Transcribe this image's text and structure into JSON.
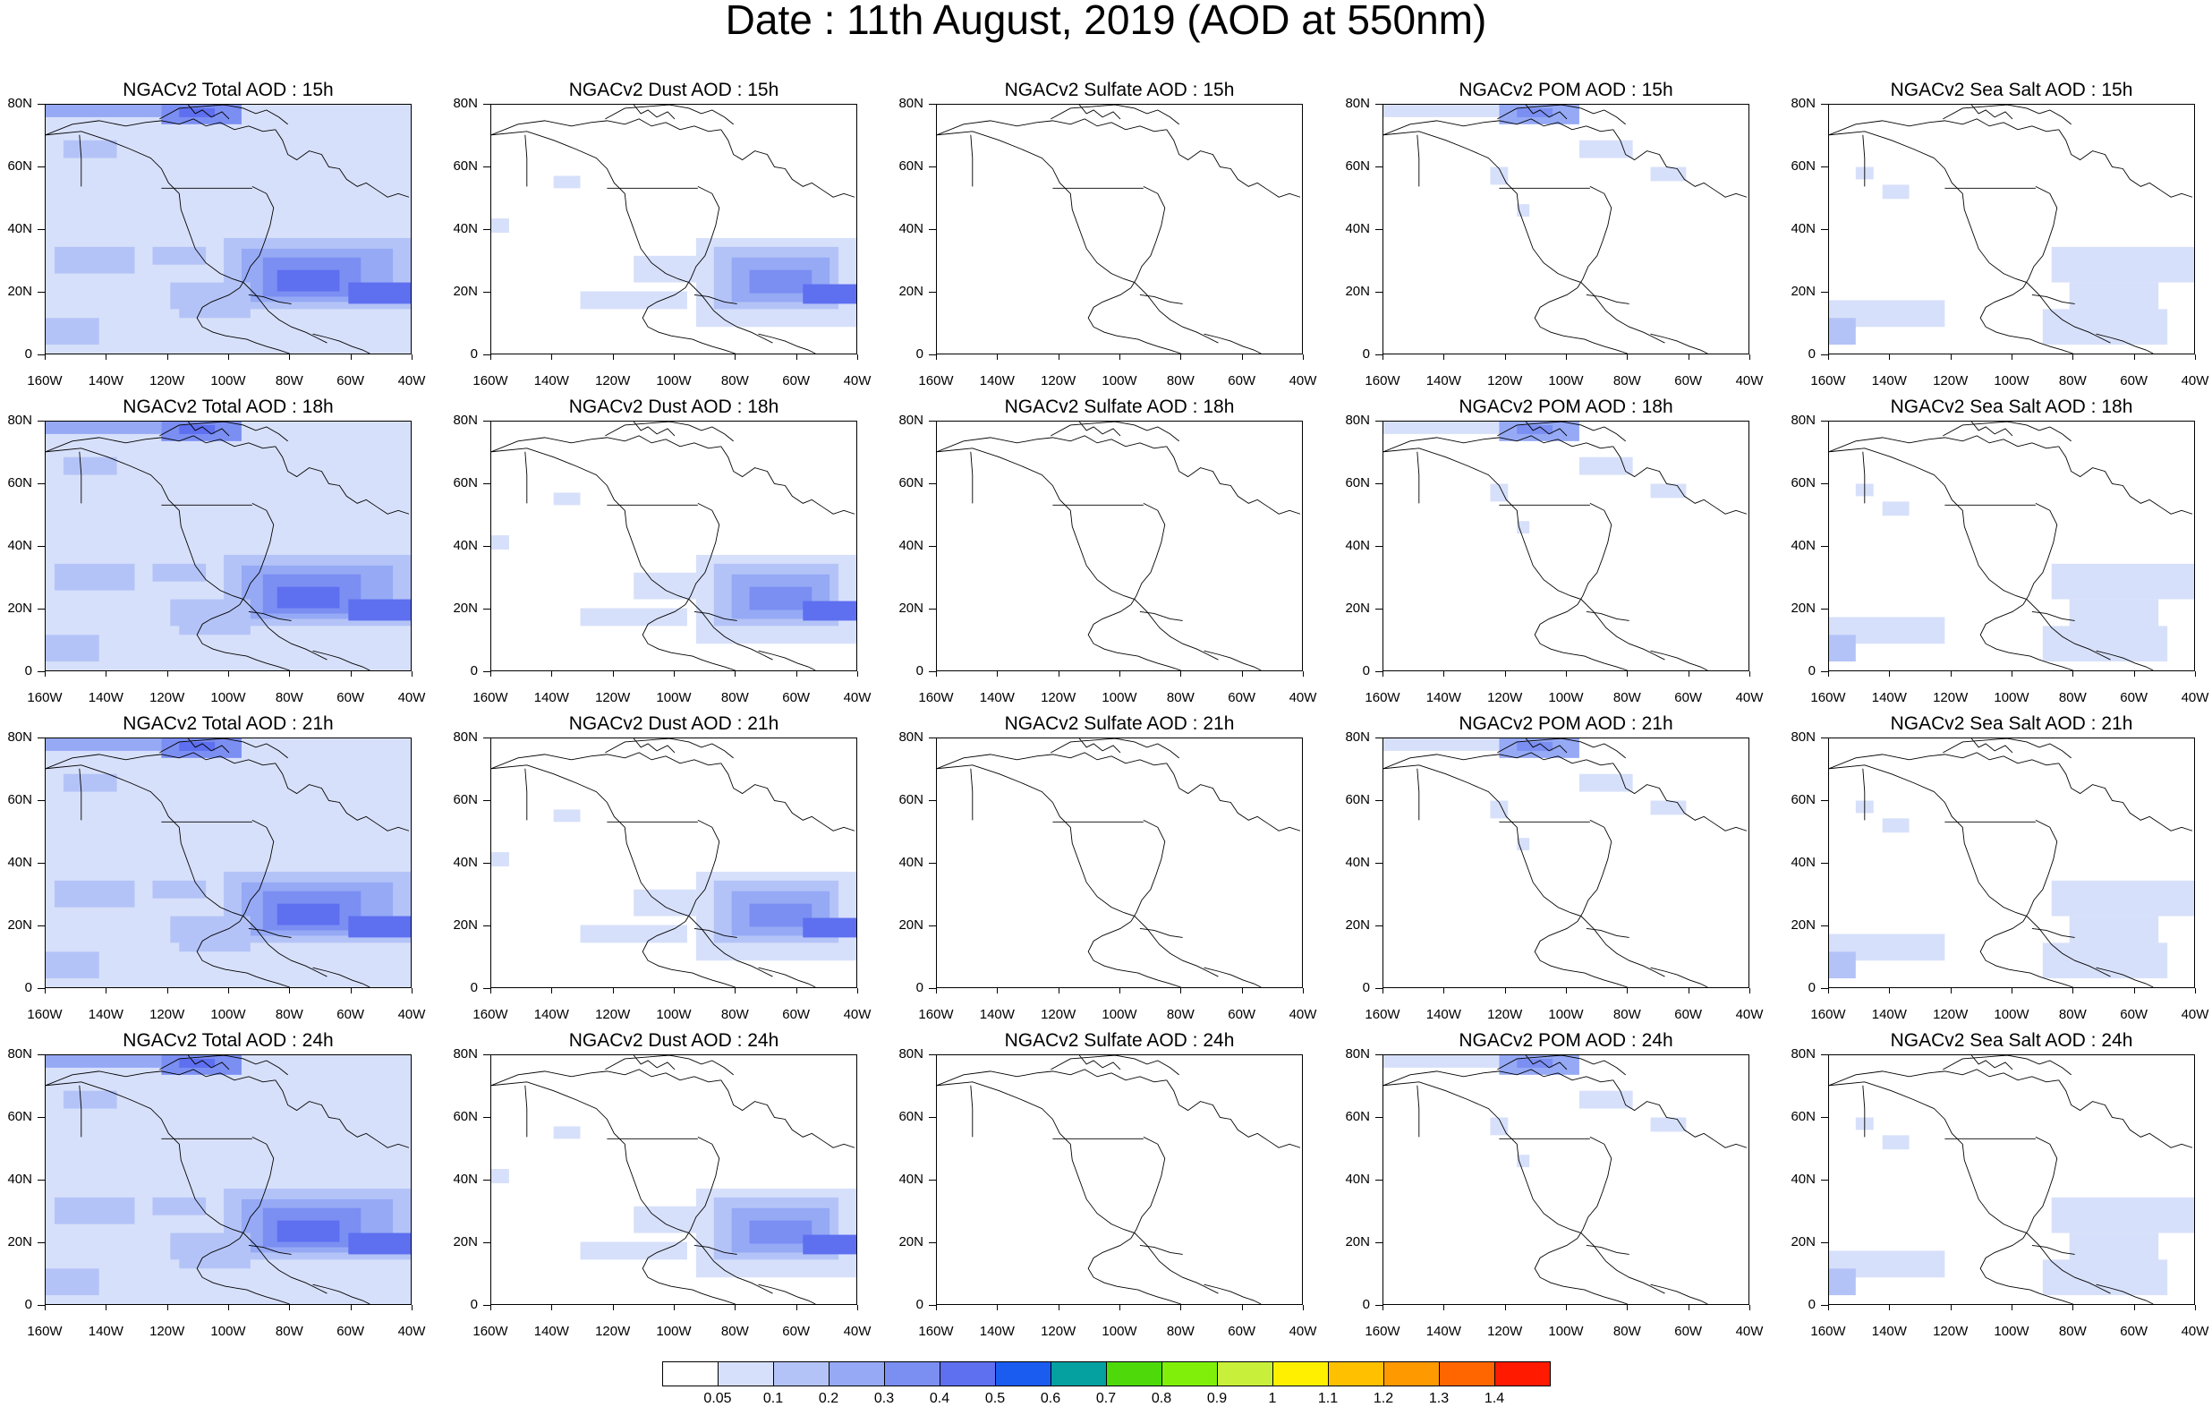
{
  "title": "Date : 11th August, 2019 (AOD at 550nm)",
  "panels": [
    {
      "row": 0,
      "col": 0,
      "title": "NGACv2 Total AOD : 15h",
      "kind": "total"
    },
    {
      "row": 0,
      "col": 1,
      "title": "NGACv2 Dust AOD : 15h",
      "kind": "dust"
    },
    {
      "row": 0,
      "col": 2,
      "title": "NGACv2 Sulfate AOD : 15h",
      "kind": "sulfate"
    },
    {
      "row": 0,
      "col": 3,
      "title": "NGACv2 POM AOD : 15h",
      "kind": "pom"
    },
    {
      "row": 0,
      "col": 4,
      "title": "NGACv2 Sea Salt AOD : 15h",
      "kind": "seasalt"
    },
    {
      "row": 1,
      "col": 0,
      "title": "NGACv2 Total AOD : 18h",
      "kind": "total"
    },
    {
      "row": 1,
      "col": 1,
      "title": "NGACv2 Dust AOD : 18h",
      "kind": "dust"
    },
    {
      "row": 1,
      "col": 2,
      "title": "NGACv2 Sulfate AOD : 18h",
      "kind": "sulfate"
    },
    {
      "row": 1,
      "col": 3,
      "title": "NGACv2 POM AOD : 18h",
      "kind": "pom"
    },
    {
      "row": 1,
      "col": 4,
      "title": "NGACv2 Sea Salt AOD : 18h",
      "kind": "seasalt"
    },
    {
      "row": 2,
      "col": 0,
      "title": "NGACv2 Total AOD : 21h",
      "kind": "total"
    },
    {
      "row": 2,
      "col": 1,
      "title": "NGACv2 Dust AOD : 21h",
      "kind": "dust"
    },
    {
      "row": 2,
      "col": 2,
      "title": "NGACv2 Sulfate AOD : 21h",
      "kind": "sulfate"
    },
    {
      "row": 2,
      "col": 3,
      "title": "NGACv2 POM AOD : 21h",
      "kind": "pom"
    },
    {
      "row": 2,
      "col": 4,
      "title": "NGACv2 Sea Salt AOD : 21h",
      "kind": "seasalt"
    },
    {
      "row": 3,
      "col": 0,
      "title": "NGACv2 Total AOD : 24h",
      "kind": "total"
    },
    {
      "row": 3,
      "col": 1,
      "title": "NGACv2 Dust AOD : 24h",
      "kind": "dust"
    },
    {
      "row": 3,
      "col": 2,
      "title": "NGACv2 Sulfate AOD : 24h",
      "kind": "sulfate"
    },
    {
      "row": 3,
      "col": 3,
      "title": "NGACv2 POM AOD : 24h",
      "kind": "pom"
    },
    {
      "row": 3,
      "col": 4,
      "title": "NGACv2 Sea Salt  AOD : 24h",
      "kind": "seasalt"
    }
  ],
  "axes": {
    "x_ticks": [
      "160W",
      "140W",
      "120W",
      "100W",
      "80W",
      "60W",
      "40W"
    ],
    "y_ticks": [
      "80N",
      "60N",
      "40N",
      "20N",
      "0"
    ],
    "x_range_deg": [
      -160,
      -40
    ],
    "y_range_deg": [
      0,
      80
    ]
  },
  "colorbar": {
    "labels": [
      "0.05",
      "0.1",
      "0.2",
      "0.3",
      "0.4",
      "0.5",
      "0.6",
      "0.7",
      "0.8",
      "0.9",
      "1",
      "1.1",
      "1.2",
      "1.3",
      "1.4"
    ],
    "colors": [
      "#ffffff",
      "#d7e0fa",
      "#b4c3f7",
      "#95a9f5",
      "#7b8ef2",
      "#5e6ff0",
      "#1a5cf0",
      "#05a0a0",
      "#4dd90a",
      "#80f00a",
      "#c8f03a",
      "#fff000",
      "#ffc000",
      "#ff9900",
      "#ff6600",
      "#ff1a00"
    ]
  },
  "colors": {
    "light": "#d7e0fa",
    "mid": "#b4c3f7",
    "darker": "#95a9f5",
    "deep": "#7b8ef2",
    "deepest": "#5e6ff0"
  }
}
